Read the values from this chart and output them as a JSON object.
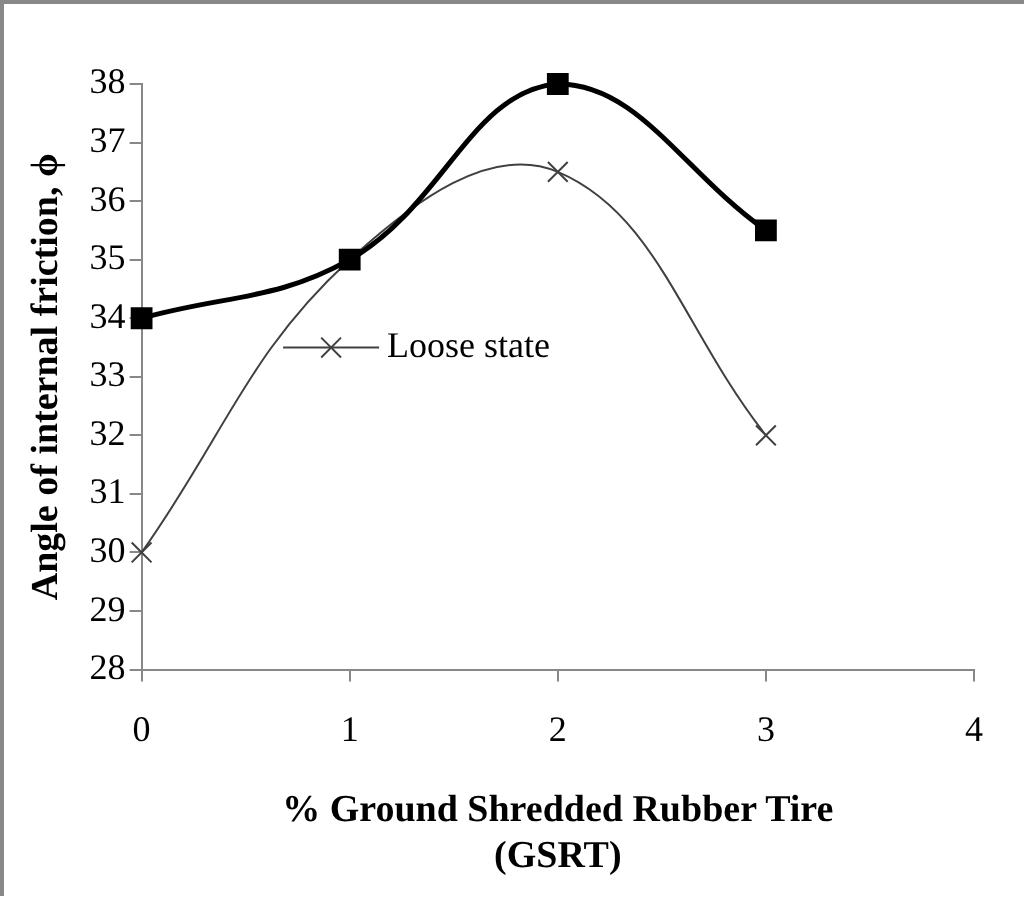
{
  "chart_data": {
    "type": "line",
    "xlabel": "% Ground Shredded Rubber Tire (GSRT)",
    "ylabel": "Angle of internal friction, ϕ",
    "x": [
      0,
      1,
      2,
      3
    ],
    "series": [
      {
        "color": "#000000",
        "values": [
          34,
          35,
          38,
          35.5
        ],
        "marker": "square"
      },
      {
        "name": "Loose state",
        "color": "#404040",
        "values": [
          30,
          35,
          36.5,
          32
        ],
        "marker": "cross"
      }
    ],
    "xlim": [
      0,
      4
    ],
    "xticks": [
      0,
      1,
      2,
      3,
      4
    ],
    "ylim": [
      28,
      38
    ],
    "yticks": [
      28,
      29,
      30,
      31,
      32,
      33,
      34,
      35,
      36,
      37,
      38
    ],
    "grid": false,
    "legend": "left"
  }
}
